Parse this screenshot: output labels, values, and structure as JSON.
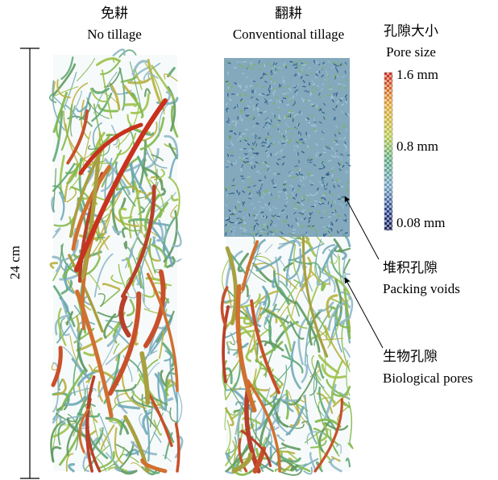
{
  "columns": [
    {
      "title_zh": "免耕",
      "title_en": "No tillage"
    },
    {
      "title_zh": "翻耕",
      "title_en": "Conventional tillage"
    }
  ],
  "scale_bar": {
    "label": "24 cm"
  },
  "legend": {
    "title_zh": "孔隙大小",
    "title_en": "Pore size",
    "labels": [
      "1.6 mm",
      "0.8 mm",
      "0.08 mm"
    ]
  },
  "annotations": [
    {
      "label_zh": "堆积孔隙",
      "label_en": "Packing voids"
    },
    {
      "label_zh": "生物孔隙",
      "label_en": "Biological pores"
    }
  ]
}
